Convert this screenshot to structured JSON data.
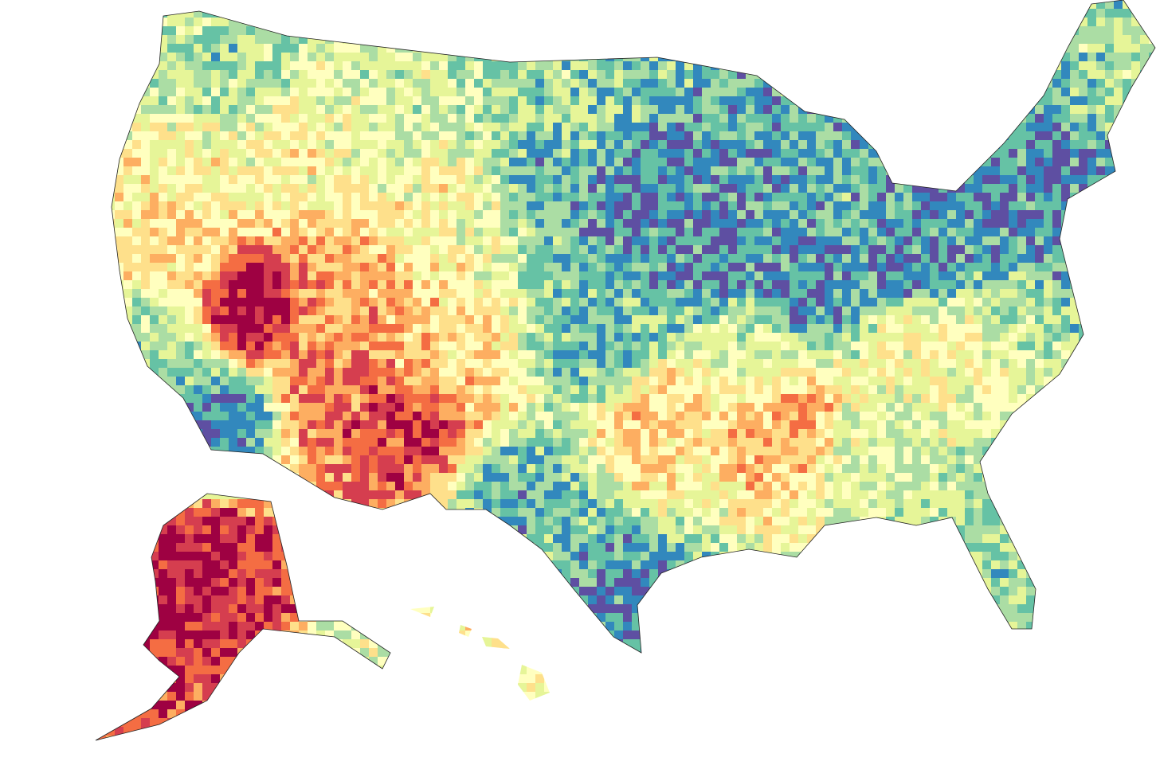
{
  "map": {
    "type": "choropleth",
    "color_scale": [
      "#5e4fa2",
      "#3288bd",
      "#66c2a5",
      "#abdda4",
      "#e6f598",
      "#ffffbf",
      "#fee08b",
      "#fdae61",
      "#f46d43",
      "#d53e4f",
      "#9e0142"
    ],
    "legend": null
  }
}
